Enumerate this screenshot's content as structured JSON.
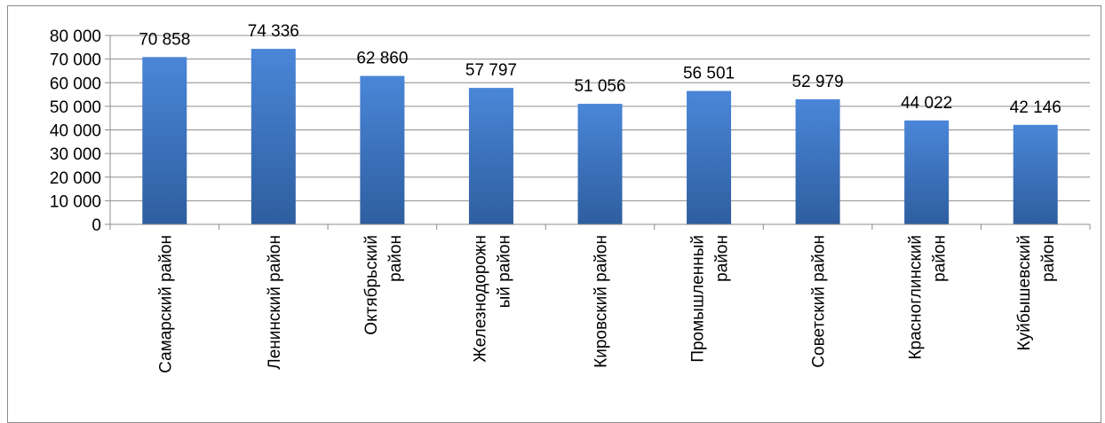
{
  "chart_data": {
    "type": "bar",
    "categories": [
      [
        "Самарский район"
      ],
      [
        "Ленинский район"
      ],
      [
        "Октябрьский",
        "район"
      ],
      [
        "Железнодорожн",
        "ый район"
      ],
      [
        "Кировский район"
      ],
      [
        "Промышленный",
        "район"
      ],
      [
        "Советский район"
      ],
      [
        "Красноглинский",
        "район"
      ],
      [
        "Куйбышевский",
        "район"
      ]
    ],
    "values": [
      70858,
      74336,
      62860,
      57797,
      51056,
      56501,
      52979,
      44022,
      42146
    ],
    "data_labels": [
      "70 858",
      "74 336",
      "62 860",
      "57 797",
      "51 056",
      "56 501",
      "52 979",
      "44 022",
      "42 146"
    ],
    "ylim": [
      0,
      80000
    ],
    "yticks": [
      0,
      10000,
      20000,
      30000,
      40000,
      50000,
      60000,
      70000,
      80000
    ],
    "ytick_labels": [
      "0",
      "10 000",
      "20 000",
      "30 000",
      "40 000",
      "50 000",
      "60 000",
      "70 000",
      "80 000"
    ],
    "grid": true,
    "legend": "none",
    "colors": {
      "bar_light": "#4a86d8",
      "bar_dark": "#2e5e9f",
      "grid": "#8c8c8c"
    }
  }
}
